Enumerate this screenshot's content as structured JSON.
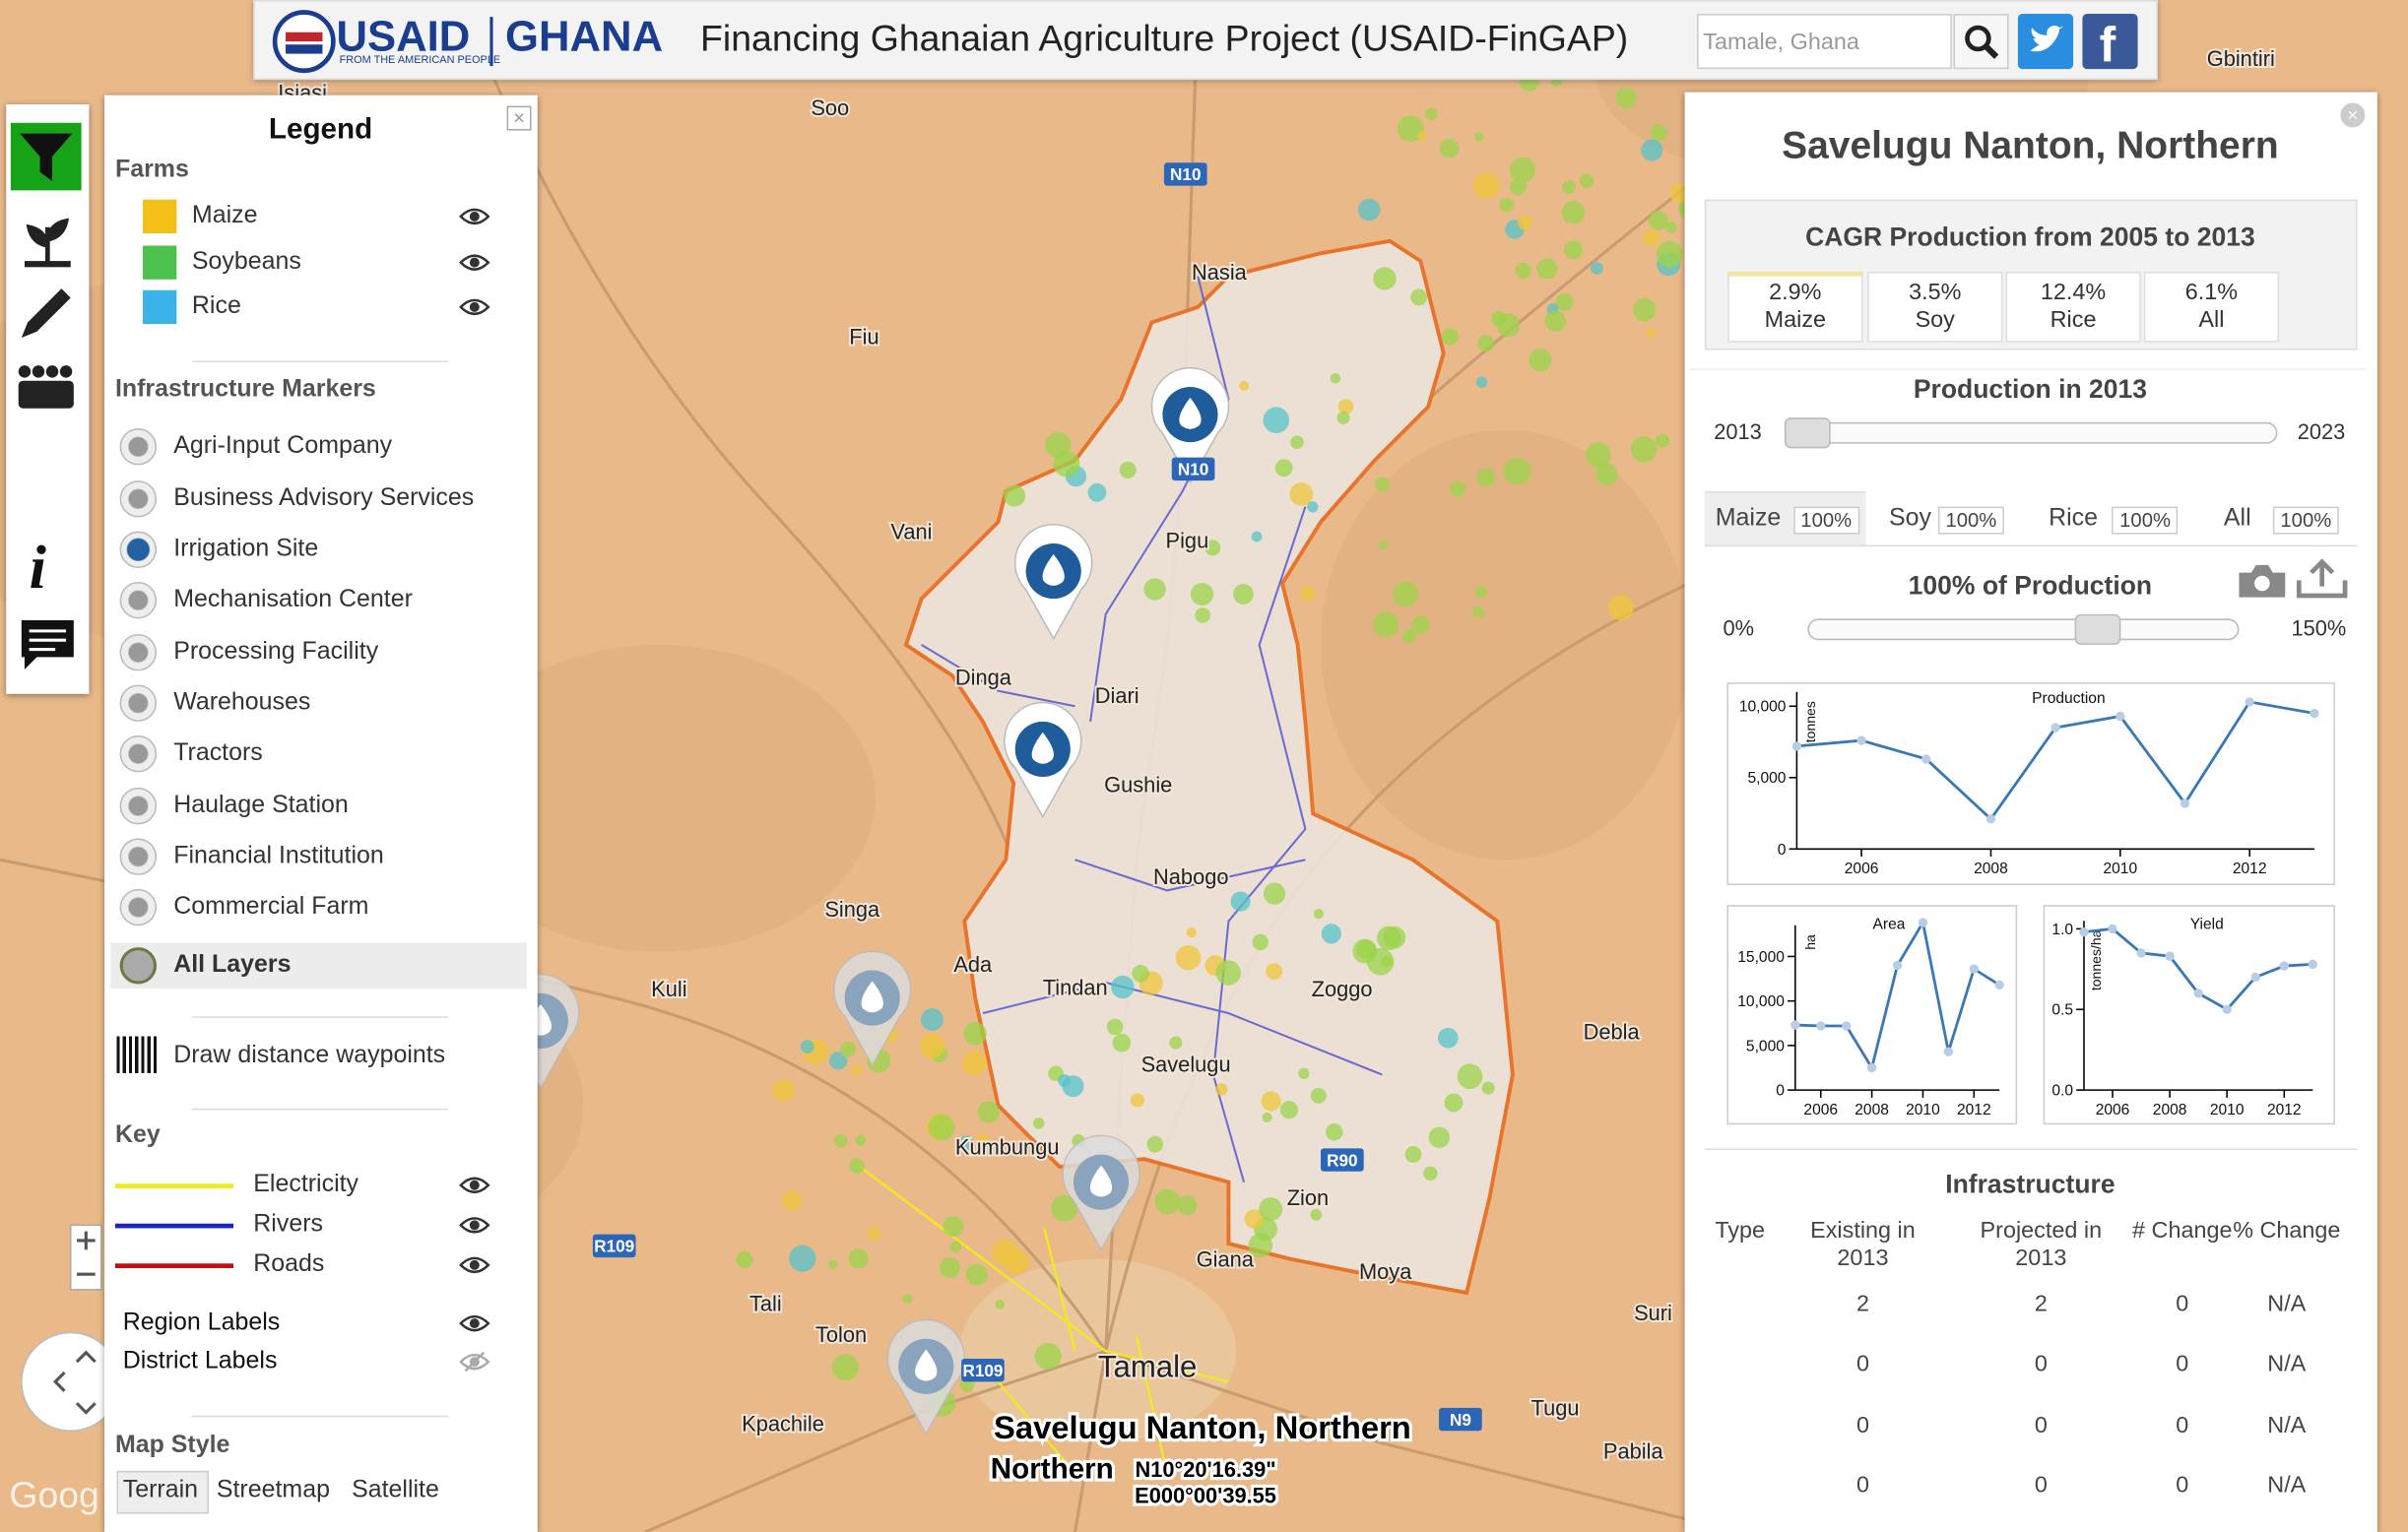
{
  "header": {
    "logo": "USAID",
    "logo_tagline": "FROM THE AMERICAN PEOPLE",
    "country": "GHANA",
    "title": "Financing Ghanaian Agriculture Project (USAID-FinGAP)",
    "search_placeholder": "Tamale, Ghana"
  },
  "legend": {
    "title": "Legend",
    "farms_heading": "Farms",
    "farms": [
      "Maize",
      "Soybeans",
      "Rice"
    ],
    "infrastructure_heading": "Infrastructure Markers",
    "infrastructure": [
      "Agri-Input Company",
      "Business Advisory Services",
      "Irrigation Site",
      "Mechanisation Center",
      "Processing Facility",
      "Warehouses",
      "Tractors",
      "Haulage Station",
      "Financial Institution",
      "Commercial Farm"
    ],
    "all_layers": "All Layers",
    "draw_waypoints": "Draw distance waypoints",
    "key_heading": "Key",
    "key": [
      {
        "name": "Electricity",
        "color": "#f2ea1c"
      },
      {
        "name": "Rivers",
        "color": "#1a22c8"
      },
      {
        "name": "Roads",
        "color": "#c01010"
      }
    ],
    "label_toggles": [
      "Region Labels",
      "District Labels"
    ],
    "map_style_heading": "Map Style",
    "map_styles": [
      "Terrain",
      "Streetmap",
      "Satellite"
    ]
  },
  "map": {
    "place_labels": [
      "Soo",
      "Isiasi",
      "Gbintiri",
      "Nasia",
      "Fiu",
      "Vani",
      "Pigu",
      "Dinga",
      "Diari",
      "Gushie",
      "Nabogo",
      "Singa",
      "Ada",
      "Tindan",
      "Zoggo",
      "Kuli",
      "Savelugu",
      "Debla",
      "Kumbungu",
      "Zion",
      "Giana",
      "Moya",
      "Tali",
      "Tolon",
      "Tamale",
      "Kpachile",
      "Suri",
      "Tugu",
      "Pabila"
    ],
    "road_labels": [
      "N10",
      "N10",
      "R90",
      "R109",
      "R109",
      "N9"
    ],
    "selected_district": "Savelugu Nanton, Northern",
    "selected_region": "Northern",
    "latitude": "N10°20'16.39\"",
    "longitude": "E000°00'39.55",
    "attribution": "Goog"
  },
  "panel": {
    "title": "Savelugu Nanton, Northern",
    "cagr_title": "CAGR Production from 2005 to 2013",
    "cagr": [
      {
        "value": "2.9%",
        "crop": "Maize"
      },
      {
        "value": "3.5%",
        "crop": "Soy"
      },
      {
        "value": "12.4%",
        "crop": "Rice"
      },
      {
        "value": "6.1%",
        "crop": "All"
      }
    ],
    "production_title": "Production in 2013",
    "year_min": "2013",
    "year_max": "2023",
    "tabs": [
      {
        "name": "Maize",
        "share": "100%"
      },
      {
        "name": "Soy",
        "share": "100%"
      },
      {
        "name": "Rice",
        "share": "100%"
      },
      {
        "name": "All",
        "share": "100%"
      }
    ],
    "share_title": "100% of Production",
    "share_min": "0%",
    "share_max": "150%",
    "charts": [
      {
        "type": "line",
        "title": "Production",
        "ylabel": "tonnes",
        "x": [
          2005,
          2006,
          2007,
          2008,
          2009,
          2010,
          2011,
          2012,
          2013
        ],
        "values": [
          7200,
          7600,
          6300,
          2100,
          8500,
          9300,
          3200,
          10300,
          9500
        ],
        "xlim": [
          2005,
          2013
        ],
        "xticks": [
          2006,
          2008,
          2010,
          2012
        ],
        "ylim": [
          0,
          11000
        ],
        "yticks": [
          0,
          {
            "value": 5000,
            "label": "5,000"
          },
          {
            "value": 10000,
            "label": "10,000"
          }
        ],
        "color": "#3a78b5"
      },
      {
        "type": "line",
        "title": "Area",
        "ylabel": "ha",
        "x": [
          2005,
          2006,
          2007,
          2008,
          2009,
          2010,
          2011,
          2012,
          2013
        ],
        "values": [
          7300,
          7200,
          7200,
          2500,
          14000,
          18800,
          4300,
          13600,
          11800
        ],
        "xlim": [
          2005,
          2013
        ],
        "xticks": [
          2006,
          2008,
          2010,
          2012
        ],
        "ylim": [
          0,
          18500
        ],
        "yticks": [
          0,
          {
            "value": 5000,
            "label": "5,000"
          },
          {
            "value": 10000,
            "label": "10,000"
          },
          {
            "value": 15000,
            "label": "15,000"
          }
        ],
        "color": "#3a78b5"
      },
      {
        "type": "line",
        "title": "Yield",
        "ylabel": "tonnes/ha",
        "x": [
          2005,
          2006,
          2007,
          2008,
          2009,
          2010,
          2011,
          2012,
          2013
        ],
        "values": [
          0.98,
          1.0,
          0.85,
          0.83,
          0.6,
          0.5,
          0.7,
          0.77,
          0.78
        ],
        "xlim": [
          2005,
          2013
        ],
        "xticks": [
          2006,
          2008,
          2010,
          2012
        ],
        "ylim": [
          0,
          1.05
        ],
        "yticks": [
          {
            "value": 0,
            "label": "0.0"
          },
          0.5,
          {
            "value": 1,
            "label": "1.0"
          }
        ],
        "color": "#3a78b5"
      }
    ],
    "infrastructure_title": "Infrastructure",
    "table": {
      "headers": [
        "Type",
        "Existing in 2013",
        "Projected in 2013",
        "# Change",
        "% Change"
      ],
      "rows": [
        [
          "2",
          "2",
          "0",
          "N/A"
        ],
        [
          "0",
          "0",
          "0",
          "N/A"
        ],
        [
          "0",
          "0",
          "0",
          "N/A"
        ],
        [
          "0",
          "0",
          "0",
          "N/A"
        ]
      ]
    }
  }
}
